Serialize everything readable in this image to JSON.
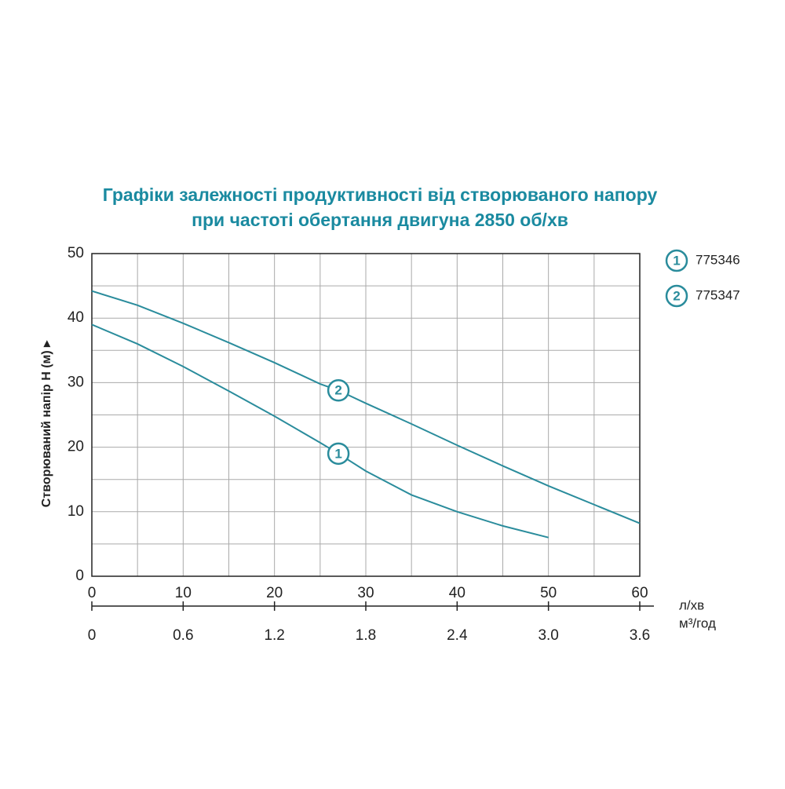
{
  "chart_data": {
    "type": "line",
    "title": [
      "Графіки залежності продуктивності від створюваного напору",
      "при частоті обертання двигуна 2850 об/хв"
    ],
    "y_label": "Створюваний напір H (м) ▸",
    "x_unit": "л/хв",
    "x2_unit": "м³/год",
    "x": [
      0,
      5,
      10,
      15,
      20,
      25,
      27,
      30,
      35,
      40,
      45,
      50,
      55,
      60
    ],
    "series": [
      {
        "name": "775346",
        "label": "1",
        "color": "#2a8c9c",
        "values": [
          39,
          36,
          32.5,
          28.7,
          24.8,
          20.7,
          19,
          16.3,
          12.6,
          10,
          7.8,
          6,
          null,
          null
        ]
      },
      {
        "name": "775347",
        "label": "2",
        "color": "#2a8c9c",
        "values": [
          44.2,
          42,
          39.2,
          36.2,
          33.1,
          29.8,
          28.8,
          26.8,
          23.6,
          20.3,
          17.1,
          14,
          11.1,
          8.2
        ]
      }
    ],
    "xlim": [
      0,
      60
    ],
    "xticks": [
      0,
      10,
      20,
      30,
      40,
      50,
      60
    ],
    "xminor": [
      5,
      15,
      25,
      35,
      45,
      55
    ],
    "x2lim": [
      0,
      3.6
    ],
    "x2ticks": [
      0,
      0.6,
      1.2,
      1.8,
      2.4,
      {
        "value": 3,
        "label": "3.0"
      },
      3.6
    ],
    "ylim": [
      0,
      50
    ],
    "yticks": [
      0,
      10,
      20,
      30,
      40,
      50
    ],
    "yminor": [
      5,
      15,
      25,
      35,
      45
    ],
    "grid": true
  }
}
